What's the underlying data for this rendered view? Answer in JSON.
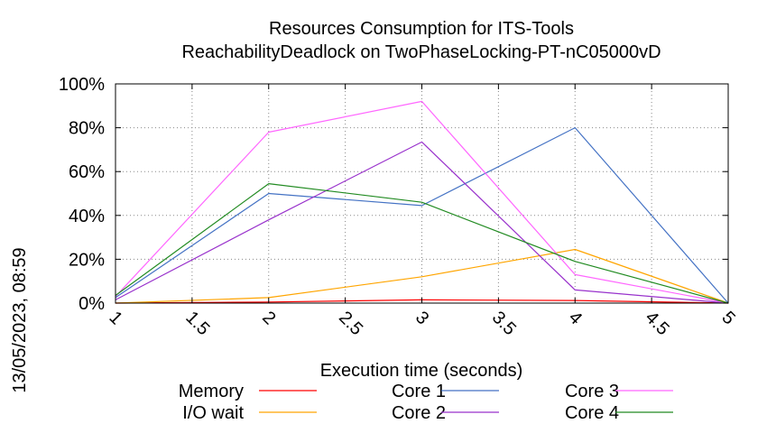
{
  "chart_data": {
    "type": "line",
    "title": "Resources Consumption for ITS-Tools",
    "subtitle": "ReachabilityDeadlock on TwoPhaseLocking-PT-nC05000vD",
    "xlabel": "Execution time (seconds)",
    "ylabel": "",
    "side_label": "13/05/2023, 08:59",
    "x": [
      1,
      2,
      3,
      4,
      5
    ],
    "xlim": [
      1,
      5
    ],
    "ylim": [
      0,
      100
    ],
    "x_ticks": [
      "1",
      "1.5",
      "2",
      "2.5",
      "3",
      "3.5",
      "4",
      "4.5",
      "5"
    ],
    "y_ticks": [
      "0%",
      "20%",
      "40%",
      "60%",
      "80%",
      "100%"
    ],
    "grid": true,
    "legend_position": "bottom",
    "series": [
      {
        "name": "Memory",
        "color": "#ff0000",
        "values": [
          0,
          0.5,
          1.5,
          1.2,
          0
        ]
      },
      {
        "name": "I/O wait",
        "color": "#ffa500",
        "values": [
          0,
          2.5,
          12,
          24.5,
          0
        ]
      },
      {
        "name": "Core 1",
        "color": "#4472c4",
        "values": [
          2.5,
          50,
          44.5,
          80,
          0
        ]
      },
      {
        "name": "Core 2",
        "color": "#9932cc",
        "values": [
          1.5,
          38,
          73.5,
          6,
          0
        ]
      },
      {
        "name": "Core 3",
        "color": "#ff66ff",
        "values": [
          3,
          78,
          92,
          13,
          0
        ]
      },
      {
        "name": "Core 4",
        "color": "#228b22",
        "values": [
          3.5,
          54.5,
          46,
          19,
          0
        ]
      }
    ]
  }
}
